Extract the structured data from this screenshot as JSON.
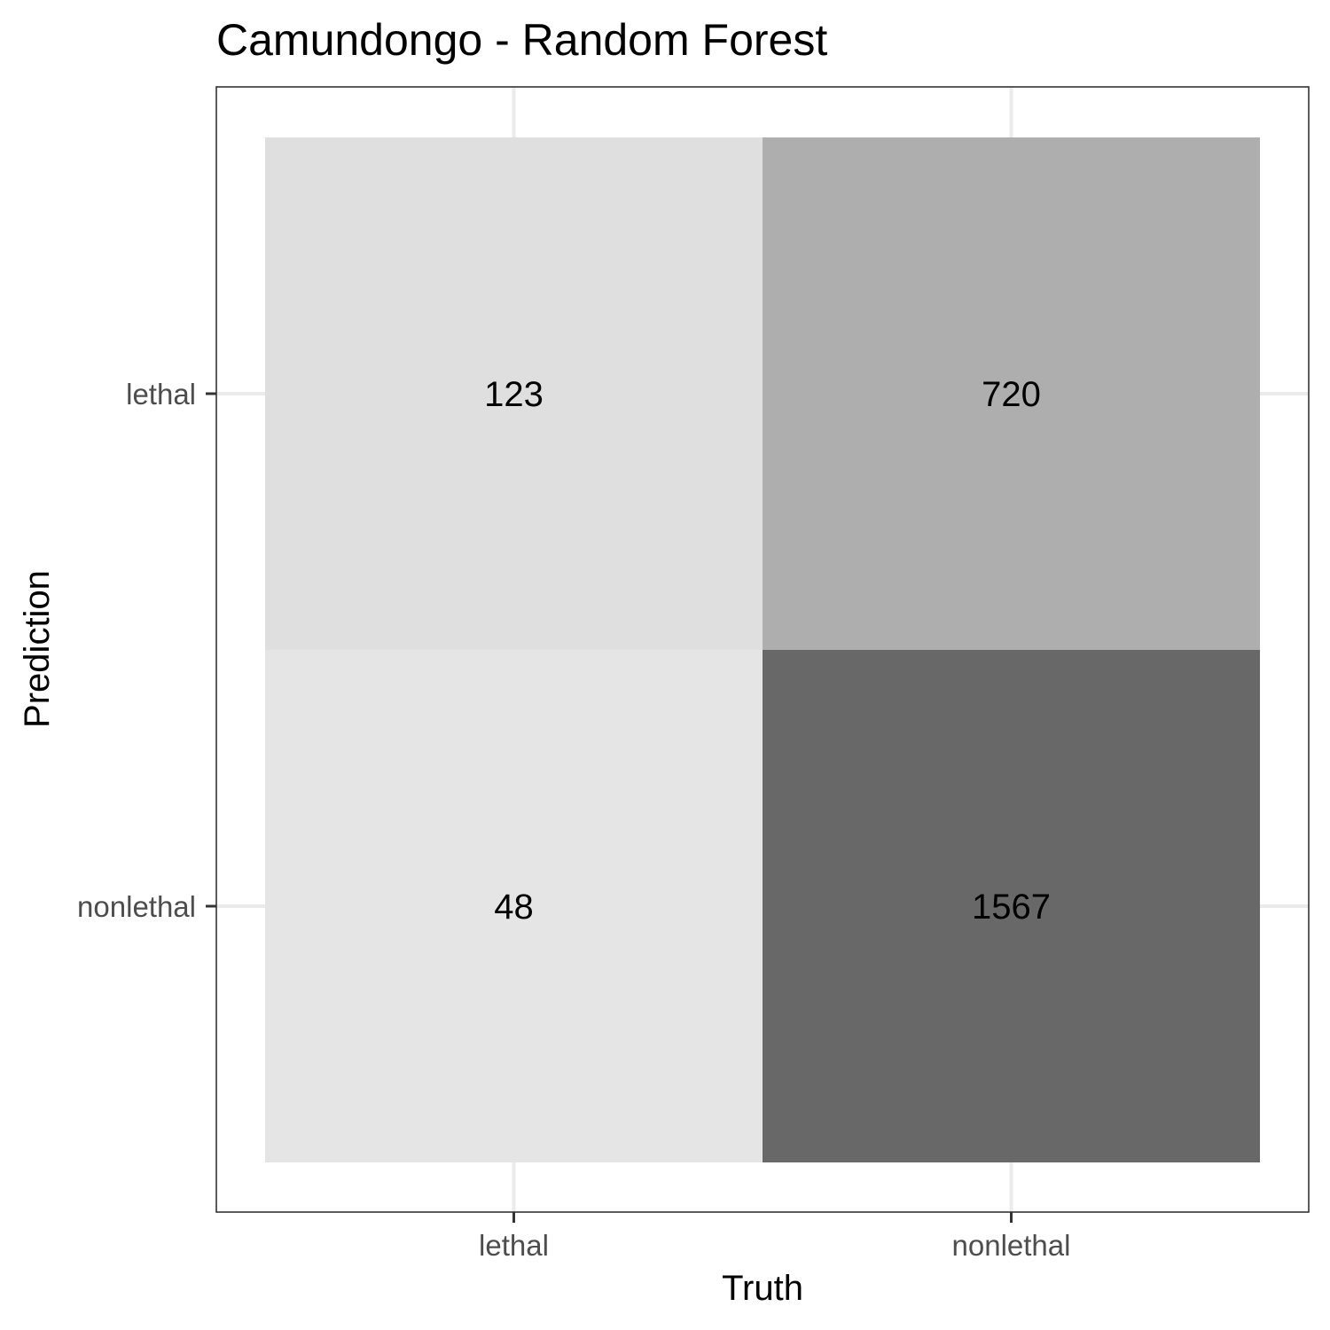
{
  "chart_data": {
    "type": "heatmap",
    "title": "Camundongo - Random Forest",
    "xlabel": "Truth",
    "ylabel": "Prediction",
    "x_categories": [
      "lethal",
      "nonlethal"
    ],
    "y_categories": [
      "lethal",
      "nonlethal"
    ],
    "cells": [
      {
        "truth": "lethal",
        "prediction": "lethal",
        "value": 123
      },
      {
        "truth": "nonlethal",
        "prediction": "lethal",
        "value": 720
      },
      {
        "truth": "lethal",
        "prediction": "nonlethal",
        "value": 48
      },
      {
        "truth": "nonlethal",
        "prediction": "nonlethal",
        "value": 1567
      }
    ],
    "fill_scale": {
      "low_color": "#e5e5e5",
      "high_color": "#686868",
      "min": 48,
      "max": 1567
    },
    "grid": true,
    "legend": "none"
  }
}
